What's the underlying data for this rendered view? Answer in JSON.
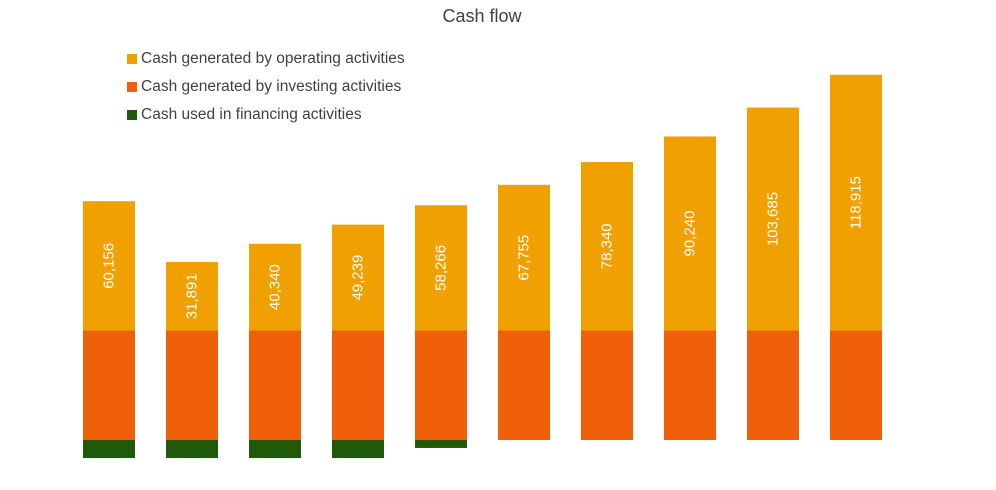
{
  "chart_data": {
    "type": "bar",
    "stacked": true,
    "title": "Cash flow",
    "xlabel": "",
    "ylabel": "",
    "grid": false,
    "legend_position": "top-left",
    "categories": [
      "",
      "",
      "",
      "",
      "",
      "",
      "",
      "",
      "",
      ""
    ],
    "series": [
      {
        "name": "Cash generated by operating activities",
        "color": "#f0a000",
        "values": [
          60156,
          31891,
          40340,
          49239,
          58266,
          67755,
          78340,
          90240,
          103685,
          118915
        ],
        "labels": [
          "60,156",
          "31,891",
          "40,340",
          "49,239",
          "58,266",
          "67,755",
          "78,340",
          "90,240",
          "103,685",
          "118,915"
        ]
      },
      {
        "name": "Cash generated by  investing activities",
        "color": "#f05f0a",
        "values": [
          50900,
          50900,
          50900,
          50900,
          50900,
          50900,
          50900,
          50900,
          50900,
          50900
        ]
      },
      {
        "name": "Cash used in financing activities",
        "color": "#1e5a0a",
        "values": [
          -8400,
          -8400,
          -8400,
          -8400,
          -3700,
          0,
          0,
          0,
          0,
          0
        ]
      }
    ]
  }
}
